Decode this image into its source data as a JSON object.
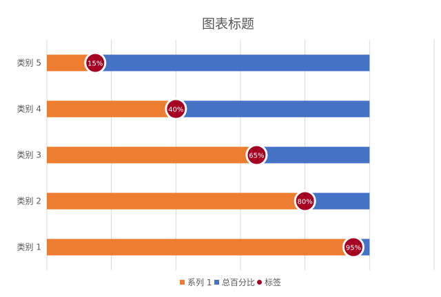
{
  "chart_data": {
    "type": "bar",
    "orientation": "horizontal",
    "stacked_overlay": true,
    "title": "图表标题",
    "categories": [
      "类别 1",
      "类别 2",
      "类别 3",
      "类别 4",
      "类别 5"
    ],
    "series": [
      {
        "name": "系列 1",
        "values": [
          0.95,
          0.8,
          0.65,
          0.4,
          0.15
        ],
        "color": "#ED7D31"
      },
      {
        "name": "总百分比",
        "values": [
          1,
          1,
          1,
          1,
          1
        ],
        "color": "#4472C4"
      },
      {
        "name": "标签",
        "values": [
          0.95,
          0.8,
          0.65,
          0.4,
          0.15
        ],
        "color": "#A50021",
        "kind": "marker"
      }
    ],
    "data_labels": [
      "95%",
      "80%",
      "65%",
      "40%",
      "15%"
    ],
    "xlim": [
      0,
      1.2
    ],
    "grid": "vertical",
    "legend_position": "bottom"
  }
}
